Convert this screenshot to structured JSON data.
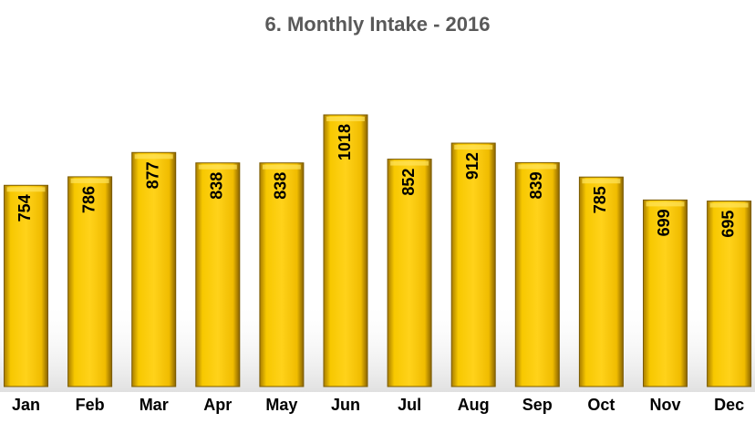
{
  "chart_data": {
    "type": "bar",
    "title": "6. Monthly Intake - 2016",
    "categories": [
      "Jan",
      "Feb",
      "Mar",
      "Apr",
      "May",
      "Jun",
      "Jul",
      "Aug",
      "Sep",
      "Oct",
      "Nov",
      "Dec"
    ],
    "values": [
      754,
      786,
      877,
      838,
      838,
      1018,
      852,
      912,
      839,
      785,
      699,
      695
    ],
    "color": "#f5c400"
  }
}
